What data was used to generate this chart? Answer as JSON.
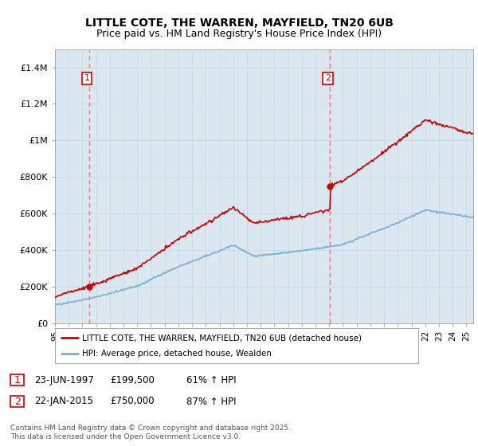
{
  "title": "LITTLE COTE, THE WARREN, MAYFIELD, TN20 6UB",
  "subtitle": "Price paid vs. HM Land Registry's House Price Index (HPI)",
  "legend_line1": "LITTLE COTE, THE WARREN, MAYFIELD, TN20 6UB (detached house)",
  "legend_line2": "HPI: Average price, detached house, Wealden",
  "transaction1_date": "23-JUN-1997",
  "transaction1_price": "£199,500",
  "transaction1_hpi": "61% ↑ HPI",
  "transaction2_date": "22-JAN-2015",
  "transaction2_price": "£750,000",
  "transaction2_hpi": "87% ↑ HPI",
  "footer": "Contains HM Land Registry data © Crown copyright and database right 2025.\nThis data is licensed under the Open Government Licence v3.0.",
  "red_color": "#cc0000",
  "blue_color": "#7ab0d4",
  "vline_color": "#e08080",
  "grid_color": "#c8d8e8",
  "plot_bg_color": "#dce8f0",
  "background_color": "#ffffff",
  "ylim_max": 1500000,
  "xmin": 1995.0,
  "xmax": 2025.5,
  "sale1_year": 1997.47,
  "sale1_price": 199500,
  "sale2_year": 2015.06,
  "sale2_price": 750000
}
